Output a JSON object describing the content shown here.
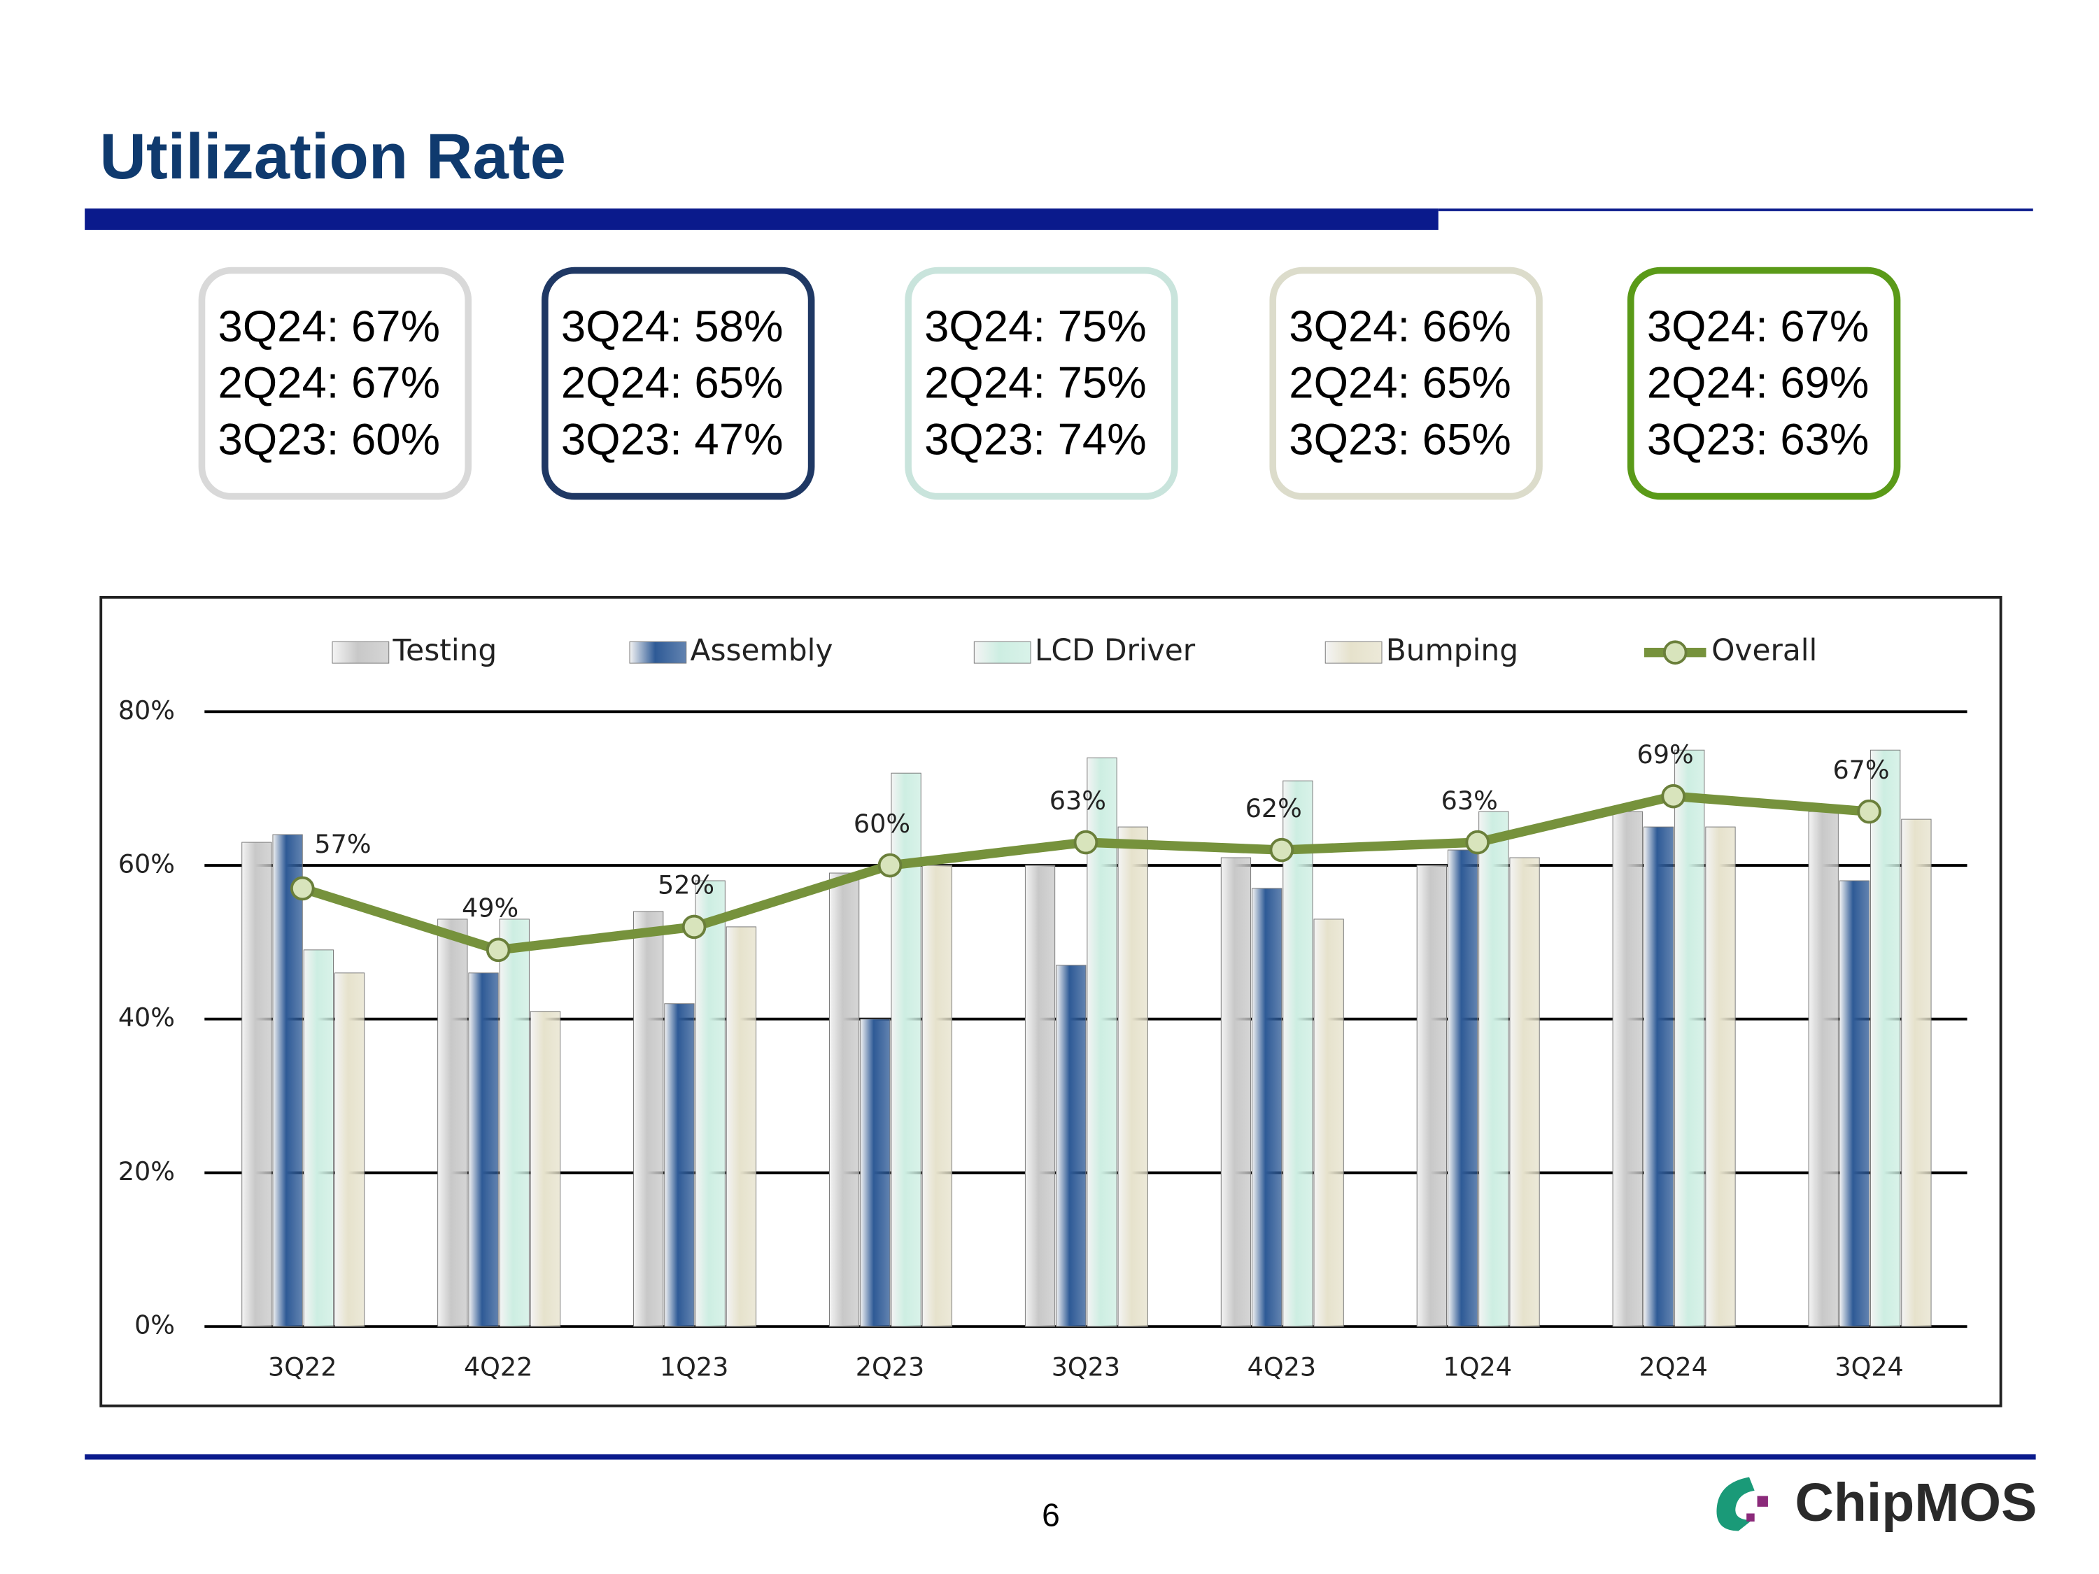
{
  "header": {
    "title": "Utilization Rate"
  },
  "summary_boxes": [
    {
      "color": "#d9d9d9",
      "lines": [
        "3Q24: 67%",
        "2Q24: 67%",
        "3Q23: 60%"
      ]
    },
    {
      "color": "#1f3864",
      "lines": [
        "3Q24: 58%",
        "2Q24: 65%",
        "3Q23: 47%"
      ]
    },
    {
      "color": "#c9e4dc",
      "lines": [
        "3Q24: 75%",
        "2Q24: 75%",
        "3Q23: 74%"
      ]
    },
    {
      "color": "#dcdccb",
      "lines": [
        "3Q24: 66%",
        "2Q24: 65%",
        "3Q23: 65%"
      ]
    },
    {
      "color": "#5a9a18",
      "lines": [
        "3Q24: 67%",
        "2Q24: 69%",
        "3Q23: 63%"
      ]
    }
  ],
  "chart_data": {
    "type": "bar",
    "categories": [
      "3Q22",
      "4Q22",
      "1Q23",
      "2Q23",
      "3Q23",
      "4Q23",
      "1Q24",
      "2Q24",
      "3Q24"
    ],
    "series": [
      {
        "name": "Testing",
        "color": "#c8c8c8",
        "values": [
          63,
          53,
          54,
          59,
          60,
          61,
          60,
          67,
          67
        ]
      },
      {
        "name": "Assembly",
        "color": "#2e5a96",
        "values": [
          64,
          46,
          42,
          40,
          47,
          57,
          62,
          65,
          58
        ]
      },
      {
        "name": "LCD Driver",
        "color": "#cdeee2",
        "values": [
          49,
          53,
          58,
          72,
          74,
          71,
          67,
          75,
          75
        ]
      },
      {
        "name": "Bumping",
        "color": "#e6e2cc",
        "values": [
          46,
          41,
          52,
          60,
          65,
          53,
          61,
          65,
          66
        ]
      },
      {
        "name": "Overall",
        "type": "line",
        "color": "#76923c",
        "values": [
          57,
          49,
          52,
          60,
          63,
          62,
          63,
          69,
          67
        ],
        "value_labels": [
          "57%",
          "49%",
          "52%",
          "60%",
          "63%",
          "62%",
          "63%",
          "69%",
          "67%"
        ]
      }
    ],
    "ylim": [
      0,
      80
    ],
    "yticks": [
      {
        "value": 0,
        "label": "0%"
      },
      {
        "value": 20,
        "label": "20%"
      },
      {
        "value": 40,
        "label": "40%"
      },
      {
        "value": 60,
        "label": "60%"
      },
      {
        "value": 80,
        "label": "80%"
      }
    ],
    "grid": true,
    "legend": "top"
  },
  "footer": {
    "page": "6",
    "logo": "ChipMOS"
  }
}
